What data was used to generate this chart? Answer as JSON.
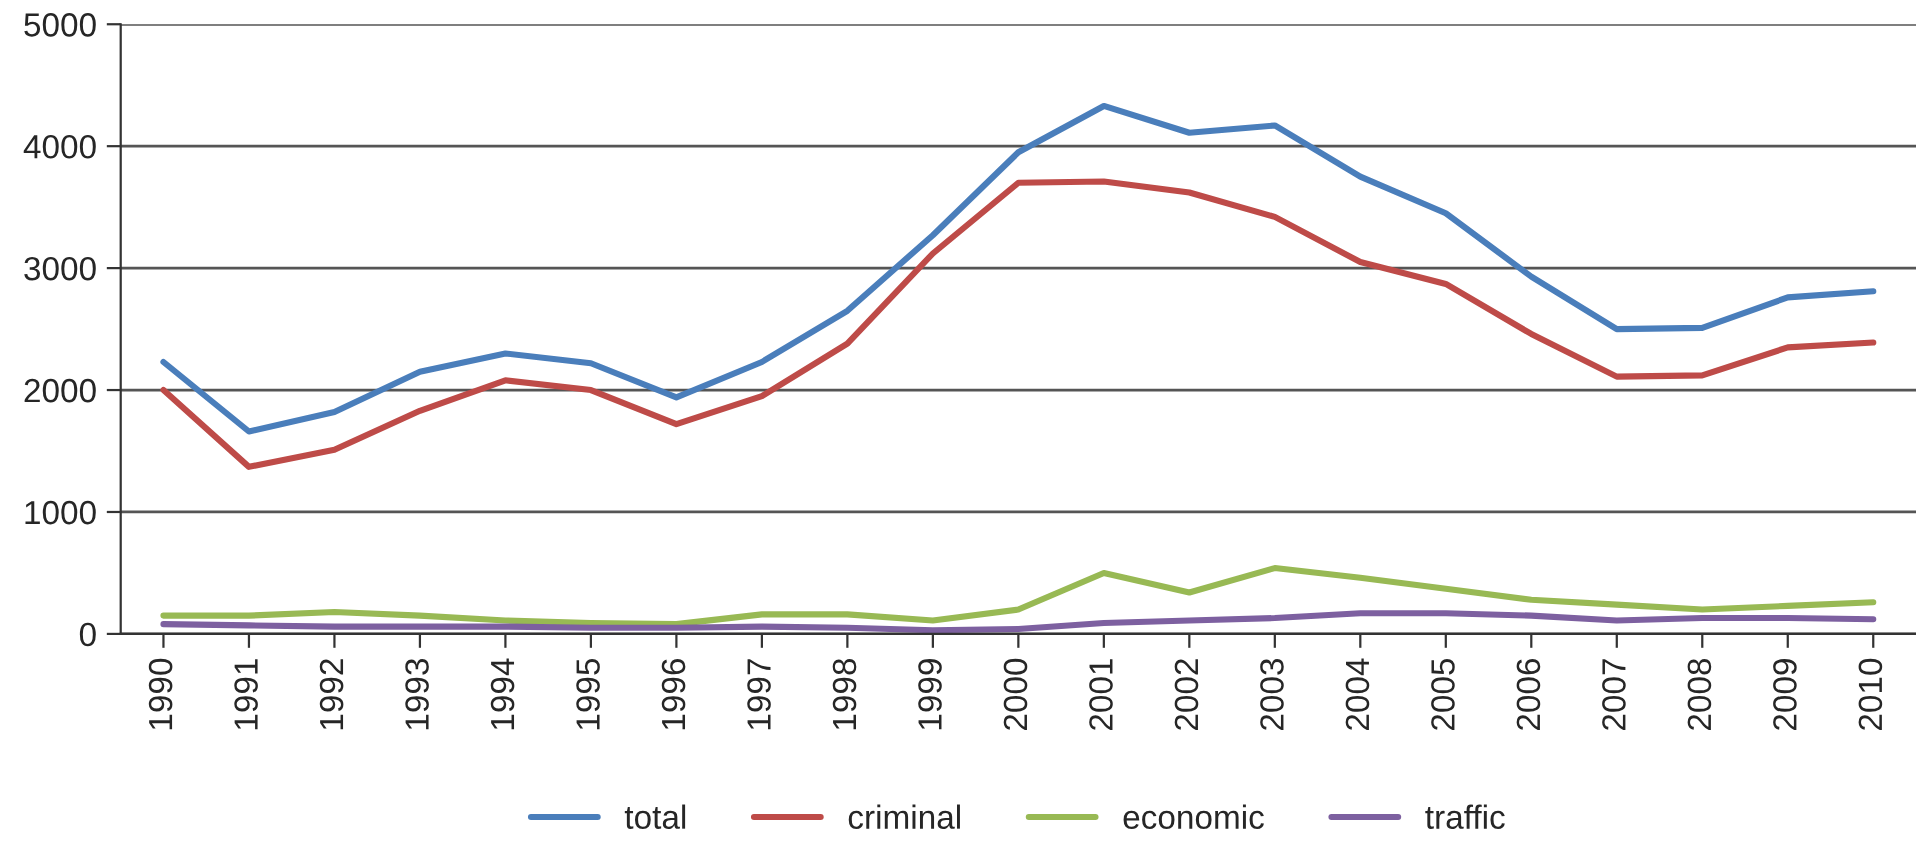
{
  "chart_data": {
    "type": "line",
    "categories": [
      "1990",
      "1991",
      "1992",
      "1993",
      "1994",
      "1995",
      "1996",
      "1997",
      "1998",
      "1999",
      "2000",
      "2001",
      "2002",
      "2003",
      "2004",
      "2005",
      "2006",
      "2007",
      "2008",
      "2009",
      "2010"
    ],
    "series": [
      {
        "name": "total",
        "color": "#4a7ebb",
        "values": [
          2230,
          1660,
          1820,
          2150,
          2300,
          2220,
          1940,
          2230,
          2650,
          3270,
          3950,
          4330,
          4110,
          4170,
          3750,
          3450,
          2930,
          2500,
          2510,
          2760,
          2810
        ]
      },
      {
        "name": "criminal",
        "color": "#be4b48",
        "values": [
          2000,
          1370,
          1510,
          1830,
          2080,
          2000,
          1720,
          1950,
          2380,
          3120,
          3700,
          3710,
          3620,
          3420,
          3050,
          2870,
          2460,
          2110,
          2120,
          2350,
          2390
        ]
      },
      {
        "name": "economic",
        "color": "#98b954",
        "values": [
          150,
          150,
          180,
          150,
          110,
          90,
          80,
          160,
          160,
          110,
          200,
          500,
          340,
          540,
          460,
          370,
          280,
          240,
          200,
          230,
          260
        ]
      },
      {
        "name": "traffic",
        "color": "#7d60a0",
        "values": [
          80,
          70,
          60,
          60,
          60,
          50,
          50,
          60,
          50,
          30,
          40,
          90,
          110,
          130,
          170,
          170,
          150,
          110,
          130,
          130,
          120
        ]
      }
    ],
    "ylim": [
      0,
      5000
    ],
    "yticks": [
      0,
      1000,
      2000,
      3000,
      4000,
      5000
    ],
    "grid": "y",
    "legend": "bottom",
    "line_style": "solid",
    "marker": "none"
  }
}
